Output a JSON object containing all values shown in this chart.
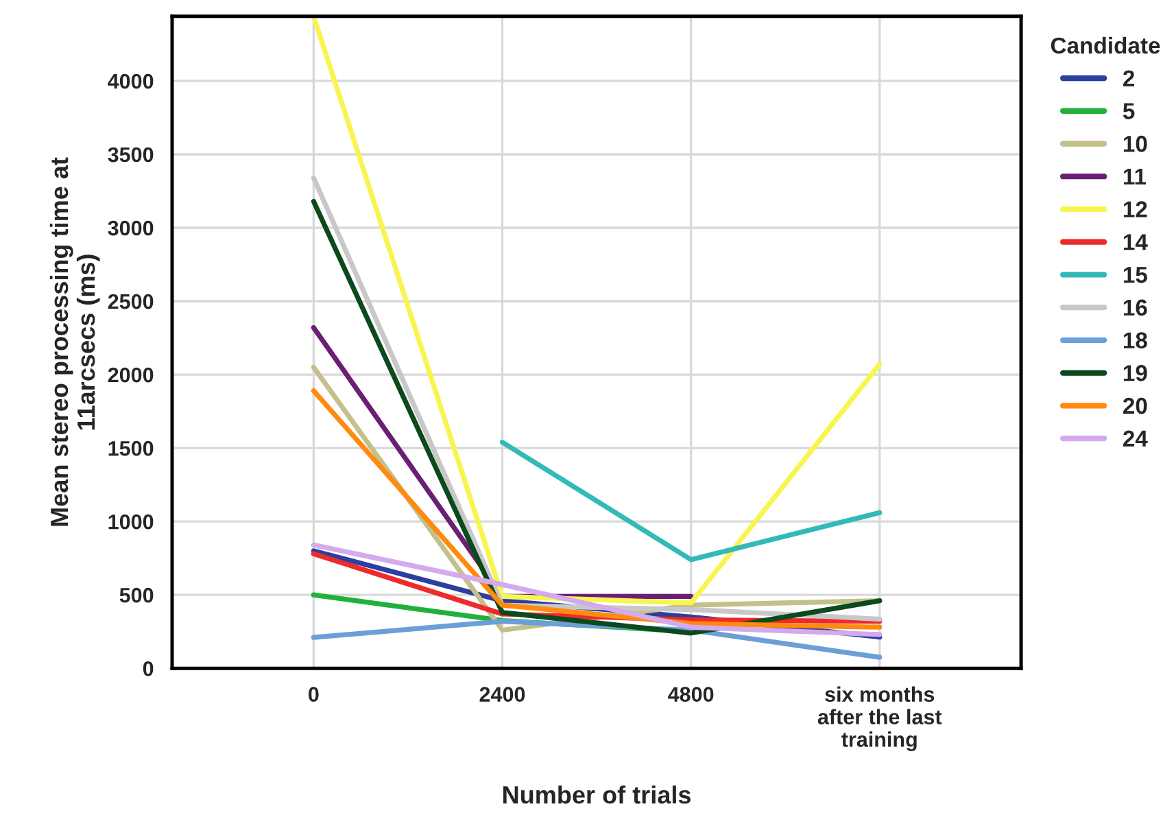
{
  "chart_data": {
    "type": "line",
    "xlabel": "Number of trials",
    "ylabel": "Mean stereo processing time at\n11arcsecs (ms)",
    "legend_title": "Candidate",
    "categories": [
      "0",
      "2400",
      "4800",
      "six months\nafter the last\ntraining"
    ],
    "series": [
      {
        "name": "2",
        "color": "#2a3f9e",
        "values": [
          800,
          460,
          350,
          213
        ]
      },
      {
        "name": "5",
        "color": "#22b03c",
        "values": [
          500,
          325,
          250,
          null
        ]
      },
      {
        "name": "10",
        "color": "#c4c08a",
        "values": [
          2050,
          260,
          430,
          460
        ]
      },
      {
        "name": "11",
        "color": "#6a1f74",
        "values": [
          2320,
          490,
          490,
          null
        ]
      },
      {
        "name": "12",
        "color": "#f8f550",
        "values": [
          4440,
          490,
          445,
          2070
        ]
      },
      {
        "name": "14",
        "color": "#ee2a2a",
        "values": [
          780,
          370,
          330,
          320
        ]
      },
      {
        "name": "15",
        "color": "#33b9b9",
        "values": [
          null,
          1540,
          740,
          1060
        ]
      },
      {
        "name": "16",
        "color": "#c8c8c8",
        "values": [
          3340,
          430,
          400,
          335
        ]
      },
      {
        "name": "18",
        "color": "#6a9fd8",
        "values": [
          210,
          320,
          260,
          75
        ]
      },
      {
        "name": "19",
        "color": "#0a4a1c",
        "values": [
          3180,
          380,
          240,
          460
        ]
      },
      {
        "name": "20",
        "color": "#ff8a10",
        "values": [
          1890,
          430,
          305,
          280
        ]
      },
      {
        "name": "24",
        "color": "#d4aaee",
        "values": [
          840,
          570,
          280,
          230
        ]
      }
    ],
    "ylim": [
      0,
      4440
    ],
    "yticks": [
      0,
      500,
      1000,
      1500,
      2000,
      2500,
      3000,
      3500,
      4000
    ],
    "grid": true,
    "legend": "right",
    "marker": "none",
    "line_style": "solid"
  }
}
